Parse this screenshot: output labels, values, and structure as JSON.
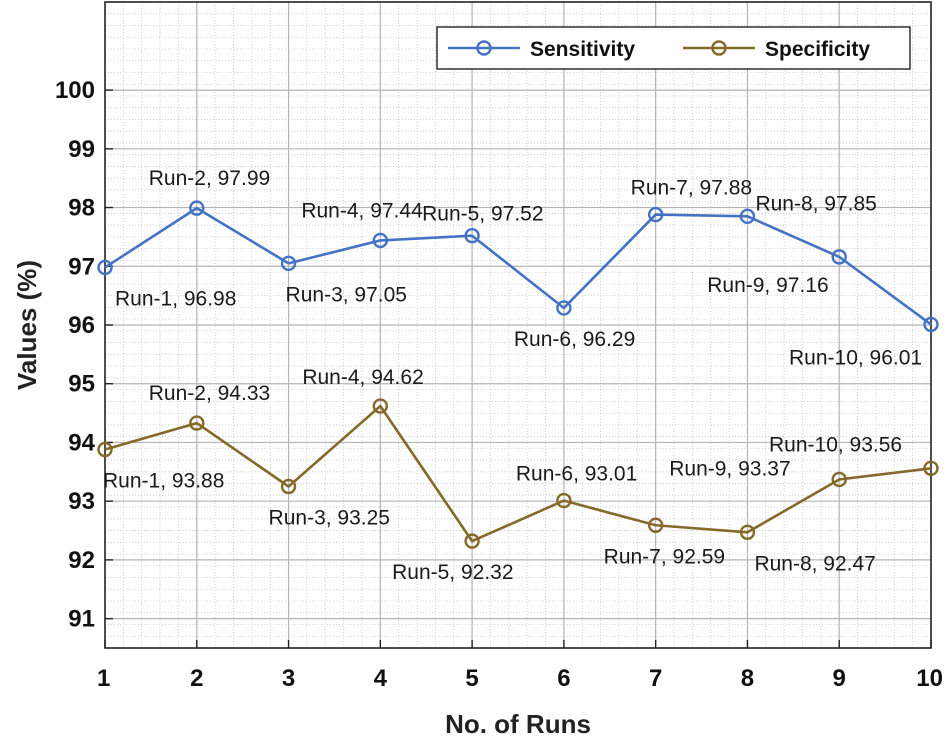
{
  "chart_data": {
    "type": "line",
    "xlabel": "No. of Runs",
    "ylabel": "Values (%)",
    "x": [
      1,
      2,
      3,
      4,
      5,
      6,
      7,
      8,
      9,
      10
    ],
    "xlim": [
      1,
      10
    ],
    "ylim": [
      90.5,
      101.5
    ],
    "yticks": [
      91,
      92,
      93,
      94,
      95,
      96,
      97,
      98,
      99,
      100
    ],
    "grid": true,
    "minor_grid": true,
    "legend": "top-right",
    "series": [
      {
        "name": "Sensitivity",
        "color": "#4472c4",
        "values": [
          96.98,
          97.99,
          97.05,
          97.44,
          97.52,
          96.29,
          97.88,
          97.85,
          97.16,
          96.01
        ],
        "labels": [
          "Run-1, 96.98",
          "Run-2, 97.99",
          "Run-3, 97.05",
          "Run-4, 97.44",
          "Run-5, 97.52",
          "Run-6, 96.29",
          "Run-7, 97.88",
          "Run-8, 97.85",
          "Run-9, 97.16",
          "Run-10, 96.01"
        ]
      },
      {
        "name": "Specificity",
        "color": "#84692a",
        "values": [
          93.88,
          94.33,
          93.25,
          94.62,
          92.32,
          93.01,
          92.59,
          92.47,
          93.37,
          93.56
        ],
        "labels": [
          "Run-1, 93.88",
          "Run-2, 94.33",
          "Run-3, 93.25",
          "Run-4, 94.62",
          "Run-5, 92.32",
          "Run-6, 93.01",
          "Run-7, 92.59",
          "Run-8, 92.47",
          "Run-9, 93.37",
          "Run-10, 93.56"
        ]
      }
    ]
  }
}
